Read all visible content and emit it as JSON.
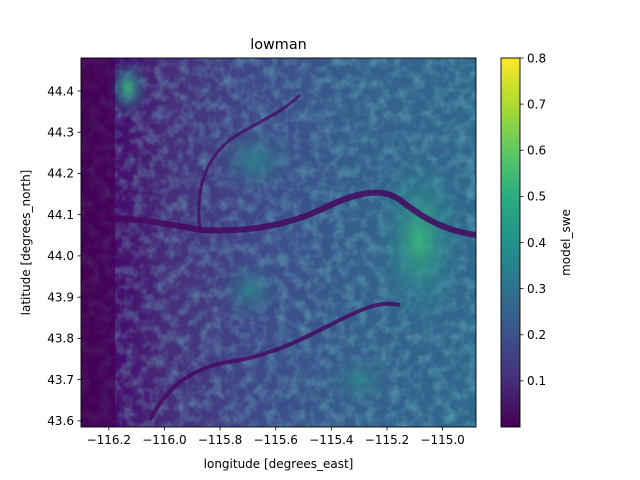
{
  "chart_data": {
    "type": "heatmap",
    "title": "lowman",
    "xlabel": "longitude [degrees_east]",
    "ylabel": "latitude [degrees_north]",
    "xlim": [
      -116.3,
      -114.88
    ],
    "ylim": [
      43.585,
      44.48
    ],
    "x_ticks": [
      -116.2,
      -116.0,
      -115.8,
      -115.6,
      -115.4,
      -115.2,
      -115.0
    ],
    "x_tick_labels": [
      "−116.2",
      "−116.0",
      "−115.8",
      "−115.6",
      "−115.4",
      "−115.2",
      "−115.0"
    ],
    "y_ticks": [
      43.6,
      43.7,
      43.8,
      43.9,
      44.0,
      44.1,
      44.2,
      44.3,
      44.4
    ],
    "y_tick_labels": [
      "43.6",
      "43.7",
      "43.8",
      "43.9",
      "44.0",
      "44.1",
      "44.2",
      "44.3",
      "44.4"
    ],
    "colorbar": {
      "label": "model_swe",
      "range": [
        0.0,
        0.8
      ],
      "ticks": [
        0.1,
        0.2,
        0.3,
        0.4,
        0.5,
        0.6,
        0.7,
        0.8
      ],
      "tick_labels": [
        "0.1",
        "0.2",
        "0.3",
        "0.4",
        "0.5",
        "0.6",
        "0.7",
        "0.8"
      ],
      "colormap": "viridis"
    },
    "grid": false
  }
}
